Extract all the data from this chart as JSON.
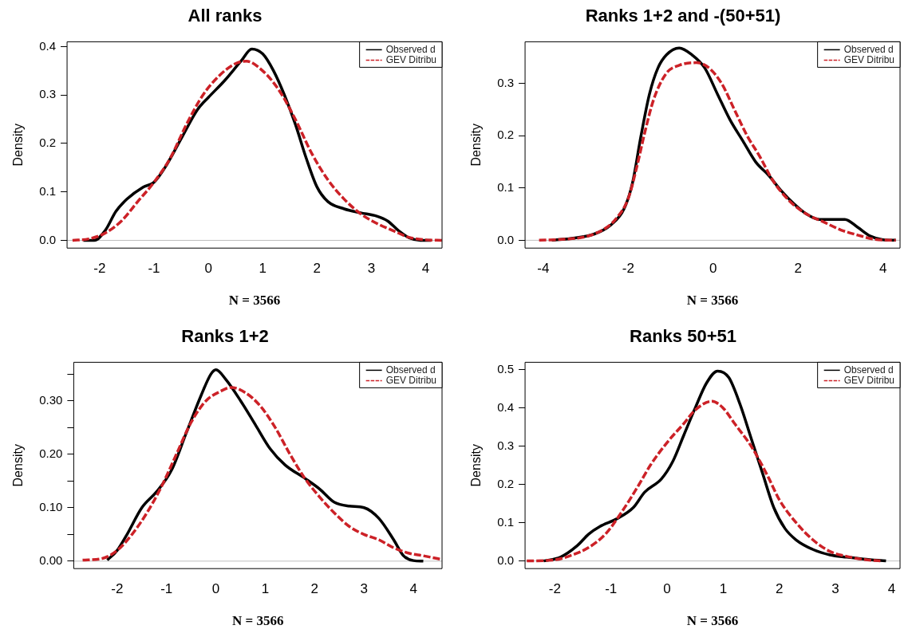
{
  "chart_data": [
    {
      "type": "line",
      "title": "All ranks",
      "xlabel": "N = 3566",
      "ylabel": "Density",
      "xlim": [
        -2.6,
        4.3
      ],
      "xticks": [
        -2,
        -1,
        0,
        1,
        2,
        3,
        4
      ],
      "ylim": [
        -0.016,
        0.41
      ],
      "yticks": [
        {
          "value": 0,
          "label": "0.0"
        },
        0.1,
        0.2,
        0.3,
        0.4
      ],
      "legend": "top right",
      "grid": false,
      "marker": "none",
      "ref_lines": [
        {
          "axis": "y",
          "value": 0,
          "color": "#bebebe"
        }
      ],
      "series": [
        {
          "name": "Observed d",
          "color": "#000000",
          "line_style": "solid",
          "x": [
            -2.3,
            -2.1,
            -1.9,
            -1.7,
            -1.5,
            -1.2,
            -1.0,
            -0.8,
            -0.5,
            -0.2,
            0,
            0.3,
            0.6,
            0.8,
            1.0,
            1.2,
            1.4,
            1.6,
            1.8,
            2.0,
            2.2,
            2.5,
            2.8,
            3.1,
            3.3,
            3.5,
            3.7,
            3.9,
            4.1
          ],
          "values": [
            0.0,
            0.0,
            0.02,
            0.06,
            0.085,
            0.11,
            0.12,
            0.15,
            0.21,
            0.27,
            0.295,
            0.33,
            0.37,
            0.395,
            0.385,
            0.35,
            0.3,
            0.24,
            0.17,
            0.11,
            0.08,
            0.065,
            0.057,
            0.05,
            0.04,
            0.02,
            0.005,
            0.0,
            0.0
          ]
        },
        {
          "name": "GEV Ditribu",
          "color": "#cc2127",
          "line_style": "dashed",
          "x": [
            -2.5,
            -2.2,
            -1.9,
            -1.6,
            -1.3,
            -1.0,
            -0.7,
            -0.4,
            -0.1,
            0.2,
            0.5,
            0.7,
            1.0,
            1.3,
            1.6,
            1.9,
            2.2,
            2.5,
            2.8,
            3.1,
            3.4,
            3.7,
            4.0,
            4.3
          ],
          "values": [
            0,
            0.003,
            0.015,
            0.04,
            0.08,
            0.12,
            0.17,
            0.24,
            0.3,
            0.34,
            0.365,
            0.37,
            0.35,
            0.31,
            0.25,
            0.18,
            0.125,
            0.085,
            0.055,
            0.035,
            0.02,
            0.006,
            0.001,
            0
          ]
        }
      ]
    },
    {
      "type": "line",
      "title": "Ranks 1+2 and -(50+51)",
      "xlabel": "N = 3566",
      "ylabel": "Density",
      "xlim": [
        -4.43,
        4.4
      ],
      "xticks": [
        -4,
        -2,
        0,
        2,
        4
      ],
      "ylim": [
        -0.015,
        0.38
      ],
      "yticks": [
        {
          "value": 0,
          "label": "0.0"
        },
        0.1,
        0.2,
        0.3
      ],
      "legend": "top right",
      "grid": false,
      "marker": "none",
      "ref_lines": [
        {
          "axis": "y",
          "value": 0,
          "color": "#bebebe"
        }
      ],
      "series": [
        {
          "name": "Observed d",
          "color": "#000000",
          "line_style": "solid",
          "x": [
            -3.8,
            -3.3,
            -2.8,
            -2.4,
            -2.1,
            -1.9,
            -1.7,
            -1.5,
            -1.3,
            -1.1,
            -0.8,
            -0.5,
            -0.2,
            0.1,
            0.4,
            0.7,
            1.0,
            1.3,
            1.6,
            1.9,
            2.2,
            2.5,
            2.8,
            3.1,
            3.4,
            3.7,
            4.0,
            4.3
          ],
          "values": [
            0,
            0.004,
            0.012,
            0.03,
            0.06,
            0.11,
            0.2,
            0.28,
            0.33,
            0.355,
            0.368,
            0.355,
            0.33,
            0.28,
            0.23,
            0.19,
            0.15,
            0.125,
            0.095,
            0.07,
            0.05,
            0.04,
            0.04,
            0.04,
            0.025,
            0.008,
            0.001,
            0.0
          ]
        },
        {
          "name": "GEV Ditribu",
          "color": "#cc2127",
          "line_style": "dashed",
          "x": [
            -4.1,
            -3.5,
            -3.0,
            -2.6,
            -2.3,
            -2.0,
            -1.8,
            -1.6,
            -1.4,
            -1.1,
            -0.8,
            -0.4,
            -0.1,
            0.2,
            0.5,
            0.8,
            1.1,
            1.4,
            1.8,
            2.2,
            2.6,
            3.0,
            3.4,
            3.8,
            4.3
          ],
          "values": [
            0,
            0.002,
            0.007,
            0.02,
            0.04,
            0.08,
            0.14,
            0.21,
            0.27,
            0.32,
            0.335,
            0.34,
            0.33,
            0.3,
            0.25,
            0.2,
            0.16,
            0.115,
            0.075,
            0.05,
            0.035,
            0.02,
            0.01,
            0.002,
            0
          ]
        }
      ]
    },
    {
      "type": "line",
      "title": "Ranks 1+2",
      "xlabel": "N = 3566",
      "ylabel": "Density",
      "xlim": [
        -2.88,
        4.58
      ],
      "xticks": [
        -2,
        -1,
        0,
        1,
        2,
        3,
        4
      ],
      "ylim": [
        -0.014,
        0.372
      ],
      "yticks": [
        {
          "value": 0.0,
          "label": "0.00"
        },
        {
          "value": 0.05,
          "label": null
        },
        {
          "value": 0.1,
          "label": "0.10"
        },
        {
          "value": 0.15,
          "label": null
        },
        {
          "value": 0.2,
          "label": "0.20"
        },
        {
          "value": 0.25,
          "label": null
        },
        {
          "value": 0.3,
          "label": "0.30"
        },
        {
          "value": 0.35,
          "label": null
        }
      ],
      "legend": "top right",
      "grid": false,
      "marker": "none",
      "ref_lines": [
        {
          "axis": "y",
          "value": 0,
          "color": "#bebebe"
        }
      ],
      "series": [
        {
          "name": "Observed d",
          "color": "#000000",
          "line_style": "solid",
          "x": [
            -2.2,
            -2.0,
            -1.8,
            -1.5,
            -1.2,
            -0.9,
            -0.6,
            -0.3,
            -0.1,
            0,
            0.2,
            0.5,
            0.8,
            1.1,
            1.4,
            1.8,
            2.1,
            2.4,
            2.7,
            3.0,
            3.3,
            3.6,
            3.8,
            4.0,
            4.2
          ],
          "values": [
            0.002,
            0.02,
            0.05,
            0.1,
            0.13,
            0.17,
            0.24,
            0.31,
            0.35,
            0.358,
            0.34,
            0.3,
            0.255,
            0.21,
            0.18,
            0.155,
            0.135,
            0.11,
            0.103,
            0.1,
            0.08,
            0.04,
            0.01,
            0.001,
            0
          ]
        },
        {
          "name": "GEV Ditribu",
          "color": "#cc2127",
          "line_style": "dashed",
          "x": [
            -2.7,
            -2.3,
            -2.0,
            -1.7,
            -1.4,
            -1.1,
            -0.8,
            -0.5,
            -0.2,
            0.1,
            0.3,
            0.6,
            0.9,
            1.2,
            1.5,
            1.8,
            2.1,
            2.4,
            2.7,
            3.0,
            3.3,
            3.6,
            3.9,
            4.2,
            4.58
          ],
          "values": [
            0.002,
            0.005,
            0.02,
            0.05,
            0.09,
            0.14,
            0.2,
            0.26,
            0.3,
            0.318,
            0.325,
            0.315,
            0.29,
            0.25,
            0.2,
            0.155,
            0.12,
            0.09,
            0.065,
            0.05,
            0.04,
            0.025,
            0.015,
            0.01,
            0.003
          ]
        }
      ]
    },
    {
      "type": "line",
      "title": "Ranks 50+51",
      "xlabel": "N = 3566",
      "ylabel": "Density",
      "xlim": [
        -2.53,
        4.15
      ],
      "xticks": [
        -2,
        -1,
        0,
        1,
        2,
        3,
        4
      ],
      "ylim": [
        -0.02,
        0.52
      ],
      "yticks": [
        {
          "value": 0,
          "label": "0.0"
        },
        0.1,
        0.2,
        0.3,
        0.4,
        0.5
      ],
      "legend": "top right",
      "grid": false,
      "marker": "none",
      "ref_lines": [
        {
          "axis": "y",
          "value": 0,
          "color": "#bebebe"
        }
      ],
      "series": [
        {
          "name": "Observed d",
          "color": "#000000",
          "line_style": "solid",
          "x": [
            -2.2,
            -1.9,
            -1.6,
            -1.4,
            -1.2,
            -0.9,
            -0.6,
            -0.4,
            -0.1,
            0.1,
            0.3,
            0.5,
            0.7,
            0.9,
            1.1,
            1.3,
            1.5,
            1.7,
            1.9,
            2.1,
            2.3,
            2.6,
            2.9,
            3.2,
            3.5,
            3.9
          ],
          "values": [
            0,
            0.01,
            0.04,
            0.07,
            0.09,
            0.11,
            0.14,
            0.18,
            0.215,
            0.26,
            0.33,
            0.4,
            0.465,
            0.497,
            0.48,
            0.41,
            0.32,
            0.23,
            0.14,
            0.085,
            0.055,
            0.03,
            0.016,
            0.01,
            0.005,
            0
          ]
        },
        {
          "name": "GEV Ditribu",
          "color": "#cc2127",
          "line_style": "dashed",
          "x": [
            -2.5,
            -2.0,
            -1.7,
            -1.4,
            -1.1,
            -0.8,
            -0.5,
            -0.3,
            0,
            0.3,
            0.5,
            0.8,
            1.0,
            1.2,
            1.5,
            1.8,
            2.0,
            2.3,
            2.6,
            2.9,
            3.2,
            3.5,
            3.8
          ],
          "values": [
            0,
            0.003,
            0.015,
            0.035,
            0.07,
            0.13,
            0.2,
            0.25,
            0.31,
            0.36,
            0.395,
            0.418,
            0.4,
            0.36,
            0.3,
            0.22,
            0.16,
            0.1,
            0.055,
            0.025,
            0.012,
            0.004,
            0
          ]
        }
      ]
    }
  ]
}
